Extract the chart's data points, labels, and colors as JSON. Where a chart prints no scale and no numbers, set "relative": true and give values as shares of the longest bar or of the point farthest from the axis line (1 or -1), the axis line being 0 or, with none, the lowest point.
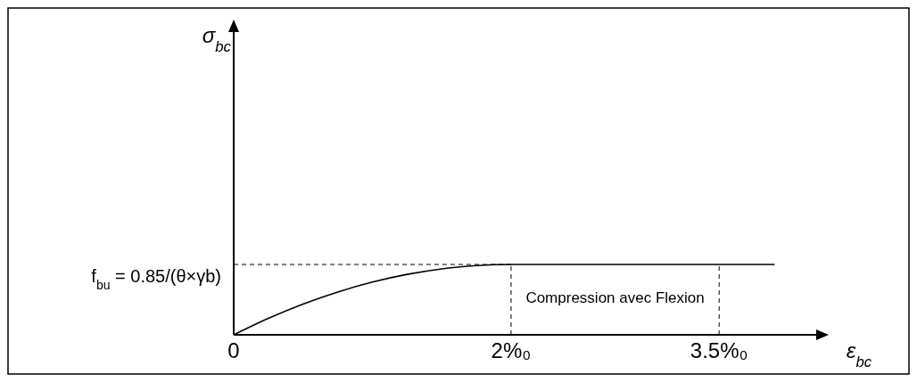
{
  "chart_data": {
    "type": "line",
    "relative": true,
    "xlabel": "ε$_{bc}$",
    "x": [
      0,
      0.25,
      0.5,
      0.75,
      1,
      1.25,
      1.5,
      1.75,
      2,
      3.5,
      3.9
    ],
    "series": [
      {
        "color": "#000000",
        "values": [
          0,
          0.234,
          0.4375,
          0.609,
          0.75,
          0.859,
          0.9375,
          0.984,
          1,
          1,
          1
        ]
      }
    ],
    "xlim": [
      0,
      4.2
    ],
    "xticks": [
      0,
      {
        "value": 2,
        "label": "2%₀"
      },
      {
        "value": 3.5,
        "label": "3.5%₀"
      }
    ],
    "ref_lines": [
      {
        "axis": "y",
        "value": 1,
        "line_style": "dashed"
      },
      {
        "axis": "x",
        "value": 2,
        "line_style": "dashed"
      },
      {
        "axis": "x",
        "value": 3.5,
        "line_style": "dashed"
      }
    ],
    "annotations": [
      "f$_{bu}$ = 0.85/(θ×γb)",
      "Compression avec Flexion",
      "σ$_{bc}$"
    ],
    "grid": false,
    "marker": "none",
    "line_style": "solid"
  }
}
